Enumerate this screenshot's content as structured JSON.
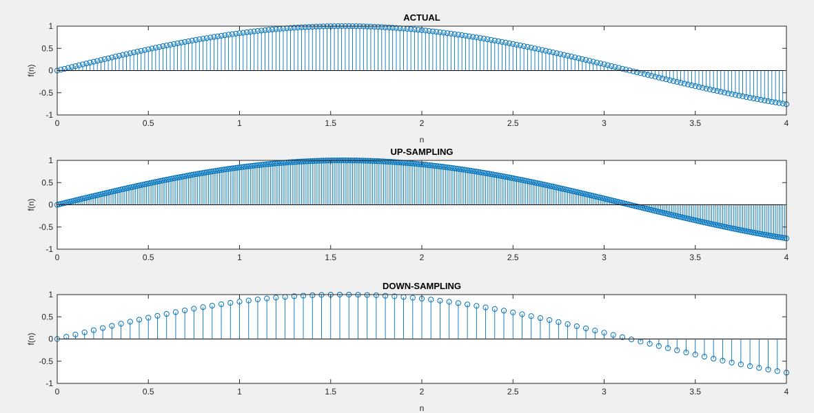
{
  "chart_data": [
    {
      "type": "stem",
      "title": "ACTUAL",
      "xlabel": "n",
      "ylabel": "f(n)",
      "xlim": [
        0,
        4
      ],
      "ylim": [
        -1,
        1
      ],
      "xticks": [
        "0",
        "0.5",
        "1",
        "1.5",
        "2",
        "2.5",
        "3",
        "3.5",
        "4"
      ],
      "yticks": [
        "1",
        "0.5",
        "0",
        "-0.5",
        "-1"
      ],
      "grid": false,
      "function": "sin(n)",
      "step": 0.02,
      "x_start": 0,
      "x_end": 4,
      "color": "#0072BD"
    },
    {
      "type": "stem",
      "title": "UP-SAMPLING",
      "xlabel": "",
      "ylabel": "f(n)",
      "xlim": [
        0,
        4
      ],
      "ylim": [
        -1,
        1
      ],
      "xticks": [
        "0",
        "0.5",
        "1",
        "1.5",
        "2",
        "2.5",
        "3",
        "3.5",
        "4"
      ],
      "yticks": [
        "1",
        "0.5",
        "0",
        "-0.5",
        "-1"
      ],
      "grid": false,
      "function": "sin(n)",
      "step": 0.01,
      "x_start": 0,
      "x_end": 4,
      "color": "#0072BD"
    },
    {
      "type": "stem",
      "title": "DOWN-SAMPLING",
      "xlabel": "n",
      "ylabel": "f(n)",
      "xlim": [
        0,
        4
      ],
      "ylim": [
        -1,
        1
      ],
      "xticks": [
        "0",
        "0.5",
        "1",
        "1.5",
        "2",
        "2.5",
        "3",
        "3.5",
        "4"
      ],
      "yticks": [
        "1",
        "0.5",
        "0",
        "-0.5",
        "-1"
      ],
      "grid": false,
      "function": "sin(n)",
      "step": 0.05,
      "x_start": 0,
      "x_end": 4,
      "color": "#0072BD"
    }
  ]
}
